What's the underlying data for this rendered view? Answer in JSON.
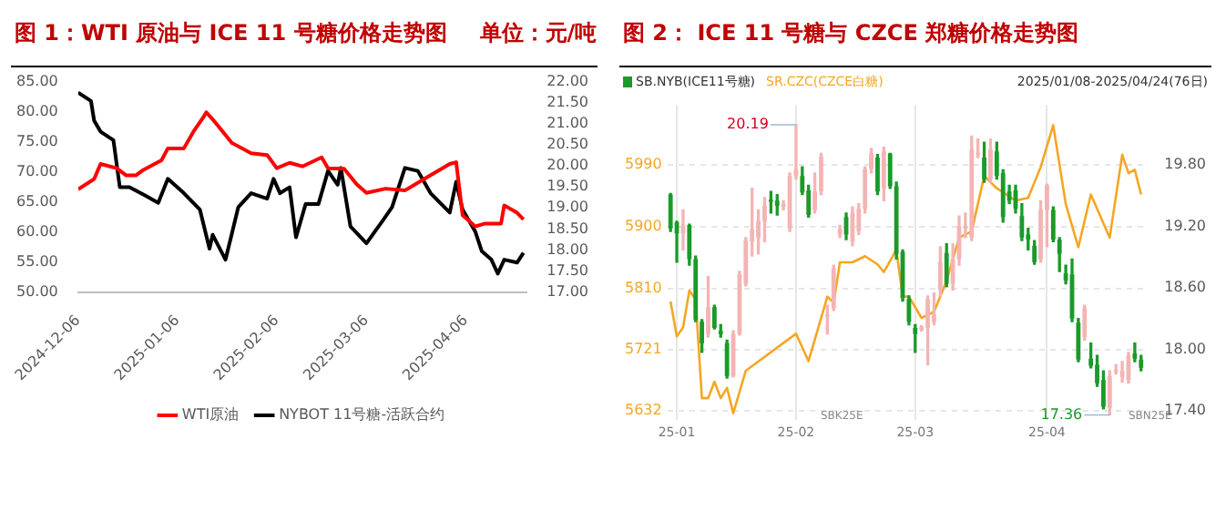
{
  "chart_data": [
    {
      "type": "line",
      "title": "图 1：WTI 原油与 ICE 11 号糖价格走势图",
      "subtitle": "单位：元/吨",
      "legend": "bottom",
      "marker": "none",
      "xlim": [
        "2024-12-06",
        "2025-04-25"
      ],
      "xticks": [
        "2024-12-06",
        "2025-01-06",
        "2025-02-06",
        "2025-03-06",
        "2025-04-06"
      ],
      "ylim": [
        50,
        85
      ],
      "yticks": [
        {
          "value": 50,
          "label": "50.00"
        },
        {
          "value": 55,
          "label": "55.00"
        },
        {
          "value": 60,
          "label": "60.00"
        },
        {
          "value": 65,
          "label": "65.00"
        },
        {
          "value": 70,
          "label": "70.00"
        },
        {
          "value": 75,
          "label": "75.00"
        },
        {
          "value": 80,
          "label": "80.00"
        },
        {
          "value": 85,
          "label": "85.00"
        }
      ],
      "y2lim": [
        17,
        22
      ],
      "y2ticks": [
        {
          "value": 17,
          "label": "17.00"
        },
        {
          "value": 17.5,
          "label": "17.50"
        },
        {
          "value": 18,
          "label": "18.00"
        },
        {
          "value": 18.5,
          "label": "18.50"
        },
        {
          "value": 19,
          "label": "19.00"
        },
        {
          "value": 19.5,
          "label": "19.50"
        },
        {
          "value": 20,
          "label": "20.00"
        },
        {
          "value": 20.5,
          "label": "20.50"
        },
        {
          "value": 21,
          "label": "21.00"
        },
        {
          "value": 21.5,
          "label": "21.50"
        },
        {
          "value": 22,
          "label": "22.00"
        }
      ],
      "series": [
        {
          "name": "WTI原油",
          "color": "#ff0000",
          "x": [
            "2024-12-06",
            "2024-12-11",
            "2024-12-13",
            "2024-12-18",
            "2024-12-21",
            "2024-12-24",
            "2024-12-26",
            "2025-01-01",
            "2025-01-03",
            "2025-01-08",
            "2025-01-11",
            "2025-01-14",
            "2025-01-15",
            "2025-01-18",
            "2025-01-23",
            "2025-01-29",
            "2025-02-03",
            "2025-02-06",
            "2025-02-10",
            "2025-02-14",
            "2025-02-20",
            "2025-02-22",
            "2025-02-27",
            "2025-03-03",
            "2025-03-06",
            "2025-03-12",
            "2025-03-18",
            "2025-03-24",
            "2025-04-01",
            "2025-04-03",
            "2025-04-05",
            "2025-04-09",
            "2025-04-12",
            "2025-04-17",
            "2025-04-18",
            "2025-04-22",
            "2025-04-24"
          ],
          "values": [
            67.1,
            68.8,
            71.3,
            70.6,
            69.4,
            69.4,
            70.2,
            71.9,
            73.9,
            73.9,
            76.7,
            79.0,
            79.9,
            78.1,
            74.8,
            73.1,
            72.8,
            70.6,
            71.5,
            70.9,
            72.4,
            70.6,
            70.5,
            67.9,
            66.5,
            67.2,
            66.9,
            68.8,
            71.3,
            71.6,
            62.8,
            60.9,
            61.4,
            61.4,
            64.4,
            63.2,
            62.1
          ]
        },
        {
          "name": "NYBOT 11号糖-活跃合约",
          "color": "#000000",
          "axis": "y2",
          "x": [
            "2024-12-06",
            "2024-12-10",
            "2024-12-11",
            "2024-12-13",
            "2024-12-17",
            "2024-12-19",
            "2024-12-22",
            "2024-12-27",
            "2024-12-31",
            "2025-01-03",
            "2025-01-08",
            "2025-01-13",
            "2025-01-16",
            "2025-01-17",
            "2025-01-21",
            "2025-01-25",
            "2025-01-29",
            "2025-02-03",
            "2025-02-05",
            "2025-02-07",
            "2025-02-10",
            "2025-02-12",
            "2025-02-15",
            "2025-02-19",
            "2025-02-22",
            "2025-02-25",
            "2025-02-26",
            "2025-03-01",
            "2025-03-06",
            "2025-03-11",
            "2025-03-14",
            "2025-03-18",
            "2025-03-22",
            "2025-03-26",
            "2025-04-01",
            "2025-04-03",
            "2025-04-05",
            "2025-04-09",
            "2025-04-11",
            "2025-04-14",
            "2025-04-16",
            "2025-04-18",
            "2025-04-22",
            "2025-04-24"
          ],
          "values": [
            21.74,
            21.54,
            21.07,
            20.81,
            20.61,
            19.49,
            19.49,
            19.29,
            19.12,
            19.69,
            19.35,
            18.96,
            18.03,
            18.36,
            17.77,
            19.02,
            19.35,
            19.22,
            19.69,
            19.35,
            19.49,
            18.3,
            19.09,
            19.09,
            19.88,
            19.55,
            19.95,
            18.56,
            18.16,
            18.69,
            19.02,
            19.95,
            19.88,
            19.35,
            18.89,
            19.62,
            18.96,
            18.43,
            17.97,
            17.77,
            17.44,
            17.77,
            17.7,
            17.93
          ]
        }
      ]
    },
    {
      "type": "candlestick",
      "title": "图 2： ICE 11 号糖与 CZCE 郑糖价格走势图",
      "legend": "top left",
      "grid": true,
      "annotations": [
        "2025/01/08-2025/04/24(76日)",
        "SBK25E",
        "SBN25E",
        "20.19",
        "17.36"
      ],
      "categories": [
        null,
        "25-01",
        null,
        null,
        null,
        null,
        null,
        null,
        null,
        null,
        null,
        null,
        null,
        null,
        null,
        null,
        null,
        null,
        null,
        null,
        "25-02",
        null,
        null,
        null,
        null,
        null,
        null,
        null,
        null,
        null,
        null,
        null,
        null,
        null,
        null,
        null,
        null,
        null,
        null,
        "25-03",
        null,
        null,
        null,
        null,
        null,
        null,
        null,
        null,
        null,
        null,
        null,
        null,
        null,
        null,
        null,
        null,
        null,
        null,
        null,
        null,
        "25-04",
        null,
        null,
        null,
        null,
        null,
        null,
        null,
        null,
        null,
        null,
        null,
        null,
        null,
        null,
        null
      ],
      "ylim": [
        5618,
        6077
      ],
      "yticks": [
        5632,
        5721,
        5810,
        5900,
        5990
      ],
      "y2lim": [
        17.31,
        20.38
      ],
      "y2ticks": [
        {
          "value": 17.4,
          "label": "17.40"
        },
        {
          "value": 18,
          "label": "18.00"
        },
        {
          "value": 18.6,
          "label": "18.60"
        },
        {
          "value": 19.2,
          "label": "19.20"
        },
        {
          "value": 19.8,
          "label": "19.80"
        }
      ],
      "series": [
        {
          "name": "SB.NYB(ICE11号糖)",
          "type": "candlestick",
          "axis": "y2",
          "color": "#1a9a2a",
          "colors": [
            "#1a9a2a",
            "#1a9a2a",
            "#f4b4b4",
            "#1a9a2a",
            "#1a9a2a",
            "#1a9a2a",
            "#f4b4b4",
            "#1a9a2a",
            "#1a9a2a",
            "#1a9a2a",
            "#f4b4b4",
            "#f4b4b4",
            "#f4b4b4",
            "#f4b4b4",
            "#f4b4b4",
            "#f4b4b4",
            "#1a9a2a",
            "#1a9a2a",
            "#f4b4b4",
            "#f4b4b4",
            "#f4b4b4",
            "#1a9a2a",
            "#1a9a2a",
            "#f4b4b4",
            "#f4b4b4",
            "#f4b4b4",
            "#f4b4b4",
            "#f4b4b4",
            "#1a9a2a",
            "#f4b4b4",
            "#f4b4b4",
            "#f4b4b4",
            "#f4b4b4",
            "#1a9a2a",
            "#f4b4b4",
            "#1a9a2a",
            "#1a9a2a",
            "#1a9a2a",
            "#1a9a2a",
            "#1a9a2a",
            "#f4b4b4",
            "#f4b4b4",
            "#f4b4b4",
            "#f4b4b4",
            "#1a9a2a",
            "#f4b4b4",
            "#f4b4b4",
            "#f4b4b4",
            "#f4b4b4",
            "#f4b4b4",
            "#1a9a2a",
            "#f4b4b4",
            "#1a9a2a",
            "#1a9a2a",
            "#1a9a2a",
            "#1a9a2a",
            "#1a9a2a",
            "#1a9a2a",
            "#1a9a2a",
            "#f4b4b4",
            "#f4b4b4",
            "#1a9a2a",
            "#1a9a2a",
            "#1a9a2a",
            "#1a9a2a",
            "#1a9a2a",
            "#f4b4b4",
            "#1a9a2a",
            "#1a9a2a",
            "#1a9a2a",
            "#f4b4b4",
            "#f4b4b4",
            "#f4b4b4",
            "#f4b4b4",
            "#1a9a2a",
            "#1a9a2a"
          ],
          "ohlc": [
            [
              19.51,
              19.52,
              19.15,
              19.18
            ],
            [
              19.24,
              19.25,
              18.85,
              19.13
            ],
            [
              19.13,
              19.36,
              18.97,
              19.21
            ],
            [
              19.21,
              19.22,
              18.82,
              18.88
            ],
            [
              18.88,
              18.91,
              18.27,
              18.29
            ],
            [
              18.27,
              18.29,
              17.97,
              18.06
            ],
            [
              18.15,
              18.71,
              18.12,
              18.41
            ],
            [
              18.41,
              18.43,
              18.2,
              18.21
            ],
            [
              18.18,
              18.24,
              18.12,
              18.15
            ],
            [
              18.06,
              18.09,
              17.72,
              17.74
            ],
            [
              17.74,
              18.18,
              17.73,
              18.15
            ],
            [
              18.15,
              18.76,
              18.14,
              18.73
            ],
            [
              18.64,
              19.09,
              18.62,
              19.06
            ],
            [
              19.05,
              19.57,
              18.91,
              19.17
            ],
            [
              19.09,
              19.36,
              18.93,
              19.25
            ],
            [
              19.25,
              19.48,
              19.05,
              19.4
            ],
            [
              19.46,
              19.54,
              19.33,
              19.44
            ],
            [
              19.45,
              19.51,
              19.31,
              19.4
            ],
            [
              19.39,
              19.45,
              19.36,
              19.42
            ],
            [
              19.18,
              19.72,
              19.15,
              19.69
            ],
            [
              19.69,
              20.19,
              19.66,
              19.75
            ],
            [
              19.69,
              19.78,
              19.51,
              19.53
            ],
            [
              19.55,
              19.6,
              19.29,
              19.31
            ],
            [
              19.36,
              19.72,
              19.33,
              19.54
            ],
            [
              19.54,
              19.91,
              19.51,
              19.88
            ],
            [
              18.32,
              18.43,
              18.15,
              18.34
            ],
            [
              18.4,
              18.82,
              18.38,
              18.79
            ],
            [
              19.12,
              19.21,
              19.09,
              19.17
            ],
            [
              19.29,
              19.33,
              19.07,
              19.12
            ],
            [
              19.05,
              19.39,
              19.01,
              19.33
            ],
            [
              19.15,
              19.42,
              19.12,
              19.37
            ],
            [
              19.37,
              19.78,
              19.33,
              19.76
            ],
            [
              19.76,
              19.96,
              19.72,
              19.91
            ],
            [
              19.87,
              19.9,
              19.51,
              19.54
            ],
            [
              19.57,
              19.97,
              19.45,
              19.93
            ],
            [
              19.91,
              19.91,
              19.57,
              19.59
            ],
            [
              19.59,
              19.63,
              18.88,
              18.93
            ],
            [
              18.95,
              18.97,
              18.47,
              18.5
            ],
            [
              18.49,
              18.52,
              18.24,
              18.27
            ],
            [
              18.21,
              18.24,
              17.97,
              18.15
            ],
            [
              18.19,
              18.23,
              18.18,
              18.22
            ],
            [
              18.21,
              18.52,
              17.85,
              18.49
            ],
            [
              18.27,
              18.55,
              18.24,
              18.34
            ],
            [
              18.58,
              19.0,
              18.52,
              18.85
            ],
            [
              18.94,
              19.03,
              18.61,
              18.64
            ],
            [
              18.64,
              19.03,
              18.58,
              18.88
            ],
            [
              18.88,
              19.3,
              18.82,
              19.2
            ],
            [
              19.18,
              19.33,
              19.09,
              19.2
            ],
            [
              19.09,
              20.08,
              19.06,
              19.95
            ],
            [
              19.9,
              20.05,
              19.87,
              19.91
            ],
            [
              19.87,
              20.02,
              19.63,
              19.66
            ],
            [
              19.66,
              20.05,
              19.63,
              19.95
            ],
            [
              19.93,
              20.02,
              19.66,
              19.69
            ],
            [
              19.72,
              19.75,
              19.24,
              19.29
            ],
            [
              19.54,
              19.6,
              19.42,
              19.45
            ],
            [
              19.55,
              19.6,
              19.33,
              19.37
            ],
            [
              19.3,
              19.42,
              19.06,
              19.09
            ],
            [
              19.12,
              19.18,
              18.97,
              19.07
            ],
            [
              19.01,
              19.06,
              18.83,
              18.85
            ],
            [
              18.88,
              19.45,
              18.85,
              19.36
            ],
            [
              19.36,
              19.61,
              19.0,
              19.6
            ],
            [
              19.36,
              19.39,
              19.05,
              19.07
            ],
            [
              19.07,
              19.09,
              18.76,
              18.93
            ],
            [
              18.74,
              18.82,
              18.64,
              18.67
            ],
            [
              18.73,
              18.88,
              18.27,
              18.3
            ],
            [
              18.26,
              18.3,
              17.88,
              17.9
            ],
            [
              18.12,
              18.43,
              18.09,
              18.4
            ],
            [
              17.91,
              18.06,
              17.82,
              17.84
            ],
            [
              17.85,
              17.94,
              17.64,
              17.67
            ],
            [
              17.7,
              17.79,
              17.42,
              17.44
            ],
            [
              17.43,
              17.79,
              17.36,
              17.74
            ],
            [
              17.79,
              17.85,
              17.76,
              17.78
            ],
            [
              17.73,
              17.88,
              17.68,
              17.79
            ],
            [
              17.7,
              17.97,
              17.67,
              17.94
            ],
            [
              17.96,
              18.06,
              17.88,
              17.91
            ],
            [
              17.9,
              17.94,
              17.79,
              17.82
            ]
          ]
        },
        {
          "name": "SR.CZC(CZCE白糖)",
          "type": "line",
          "color": "#f5a623",
          "values": [
            5791,
            5740,
            5753,
            5807,
            5794,
            5650,
            5650,
            5674,
            5650,
            5665,
            5628,
            null,
            5690,
            null,
            null,
            null,
            null,
            null,
            null,
            null,
            5744,
            null,
            5704,
            null,
            null,
            5798,
            5789,
            5848,
            null,
            5848,
            null,
            5857,
            null,
            5845,
            5834,
            null,
            5866,
            5798,
            5798,
            null,
            5767,
            null,
            5776,
            null,
            5821,
            null,
            5884,
            null,
            5893,
            null,
            5974,
            null,
            5956,
            null,
            null,
            5938,
            null,
            5942,
            null,
            5987,
            null,
            6048,
            null,
            5933,
            null,
            5870,
            null,
            5947,
            null,
            null,
            5884,
            null,
            6005,
            5978,
            5983,
            5947
          ]
        }
      ]
    }
  ]
}
